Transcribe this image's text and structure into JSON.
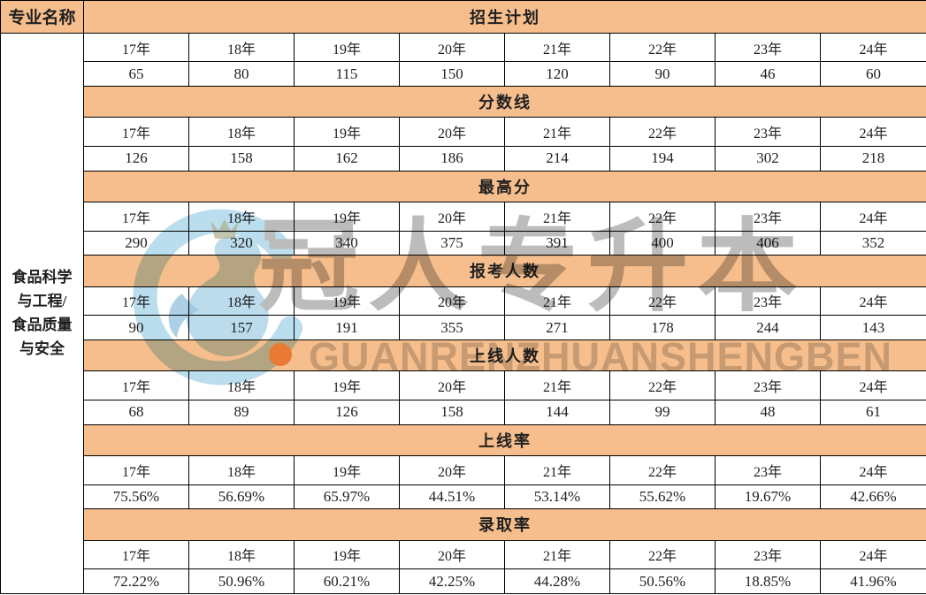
{
  "chart_data": {
    "type": "table",
    "corner_header": "专业名称",
    "row_header": "食品科学与工程/食品质量与安全",
    "years": [
      "17年",
      "18年",
      "19年",
      "20年",
      "21年",
      "22年",
      "23年",
      "24年"
    ],
    "metrics": [
      {
        "name": "招生计划",
        "values": [
          65,
          80,
          115,
          150,
          120,
          90,
          46,
          60
        ]
      },
      {
        "name": "分数线",
        "values": [
          126,
          158,
          162,
          186,
          214,
          194,
          302,
          218
        ]
      },
      {
        "name": "最高分",
        "values": [
          290,
          320,
          340,
          375,
          391,
          400,
          406,
          352
        ]
      },
      {
        "name": "报考人数",
        "values": [
          90,
          157,
          191,
          355,
          271,
          178,
          244,
          143
        ]
      },
      {
        "name": "上线人数",
        "values": [
          68,
          89,
          126,
          158,
          144,
          99,
          48,
          61
        ]
      },
      {
        "name": "上线率",
        "values": [
          "75.56%",
          "56.69%",
          "65.97%",
          "44.51%",
          "53.14%",
          "55.62%",
          "19.67%",
          "42.66%"
        ]
      },
      {
        "name": "录取率",
        "values": [
          "72.22%",
          "50.96%",
          "60.21%",
          "42.25%",
          "44.28%",
          "50.56%",
          "18.85%",
          "41.96%"
        ]
      }
    ],
    "layout": {
      "grid": "on",
      "section_band_color": "#f5be8c",
      "columns": 9,
      "rows": 21
    }
  },
  "display": {
    "major_name_lines": [
      "食品科学",
      "与工程/",
      "食品质量",
      "与安全"
    ]
  },
  "watermark": {
    "brand_cn": "冠人专升本",
    "brand_en": "GUANRENZHUANSHENGBEN",
    "logo": "guanren-bird-circle-logo"
  },
  "colors": {
    "band_orange": "#f5be8c",
    "border_black": "#000000",
    "text_black": "#1f1f1f",
    "watermark_gray_cn": "#bcbcbc",
    "watermark_gray_en": "#cfcfcf",
    "logo_blue": "#abd6ea",
    "logo_bird_blue": "#9ccbe3",
    "logo_wing_blue": "#7fb5d4",
    "logo_crown_olive": "#9a9a6e",
    "dot_orange": "#f2a45c"
  }
}
